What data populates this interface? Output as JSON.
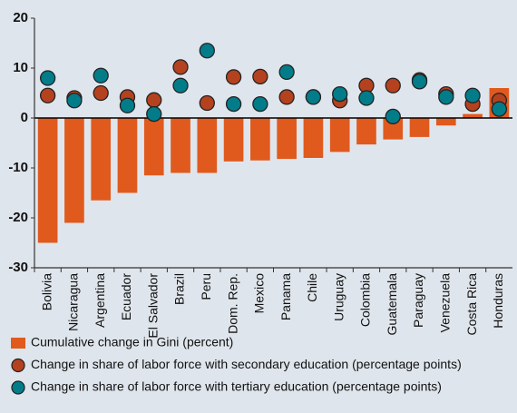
{
  "chart_data": {
    "type": "bar",
    "categories": [
      "Bolivia",
      "Nicaragua",
      "Argentina",
      "Ecuador",
      "El Salvador",
      "Brazil",
      "Peru",
      "Dom. Rep.",
      "Mexico",
      "Panama",
      "Chile",
      "Uruguay",
      "Colombia",
      "Guatemala",
      "Paraguay",
      "Venezuela",
      "Costa Rica",
      "Honduras"
    ],
    "series": [
      {
        "name": "Cumulative change in Gini (percent)",
        "color": "#e05a1e",
        "style": "bar",
        "values": [
          -25,
          -21,
          -16.5,
          -15,
          -11.5,
          -11,
          -11,
          -8.7,
          -8.5,
          -8.2,
          -8,
          -6.8,
          -5.3,
          -4.3,
          -3.8,
          -1.5,
          0.8,
          6
        ]
      },
      {
        "name": "Change in share of labor force with secondary education (percentage points)",
        "color": "#b4421f",
        "style": "dot",
        "values": [
          4.5,
          4,
          5,
          4.2,
          3.6,
          10.2,
          3,
          8.2,
          8.3,
          4.2,
          4.2,
          3.5,
          6.5,
          6.5,
          7.6,
          4.8,
          2.8,
          3.5
        ]
      },
      {
        "name": "Change in share of labor force with tertiary education (percentage points)",
        "color": "#037c8a",
        "style": "dot",
        "values": [
          8,
          3.5,
          8.5,
          2.5,
          0.8,
          6.5,
          13.5,
          2.8,
          2.8,
          9.2,
          4.2,
          4.8,
          4,
          0.3,
          7.3,
          4.2,
          4.5,
          1.8
        ]
      }
    ],
    "ylim": [
      -30,
      20
    ],
    "yticks": [
      -30,
      -20,
      -10,
      0,
      10,
      20
    ]
  }
}
